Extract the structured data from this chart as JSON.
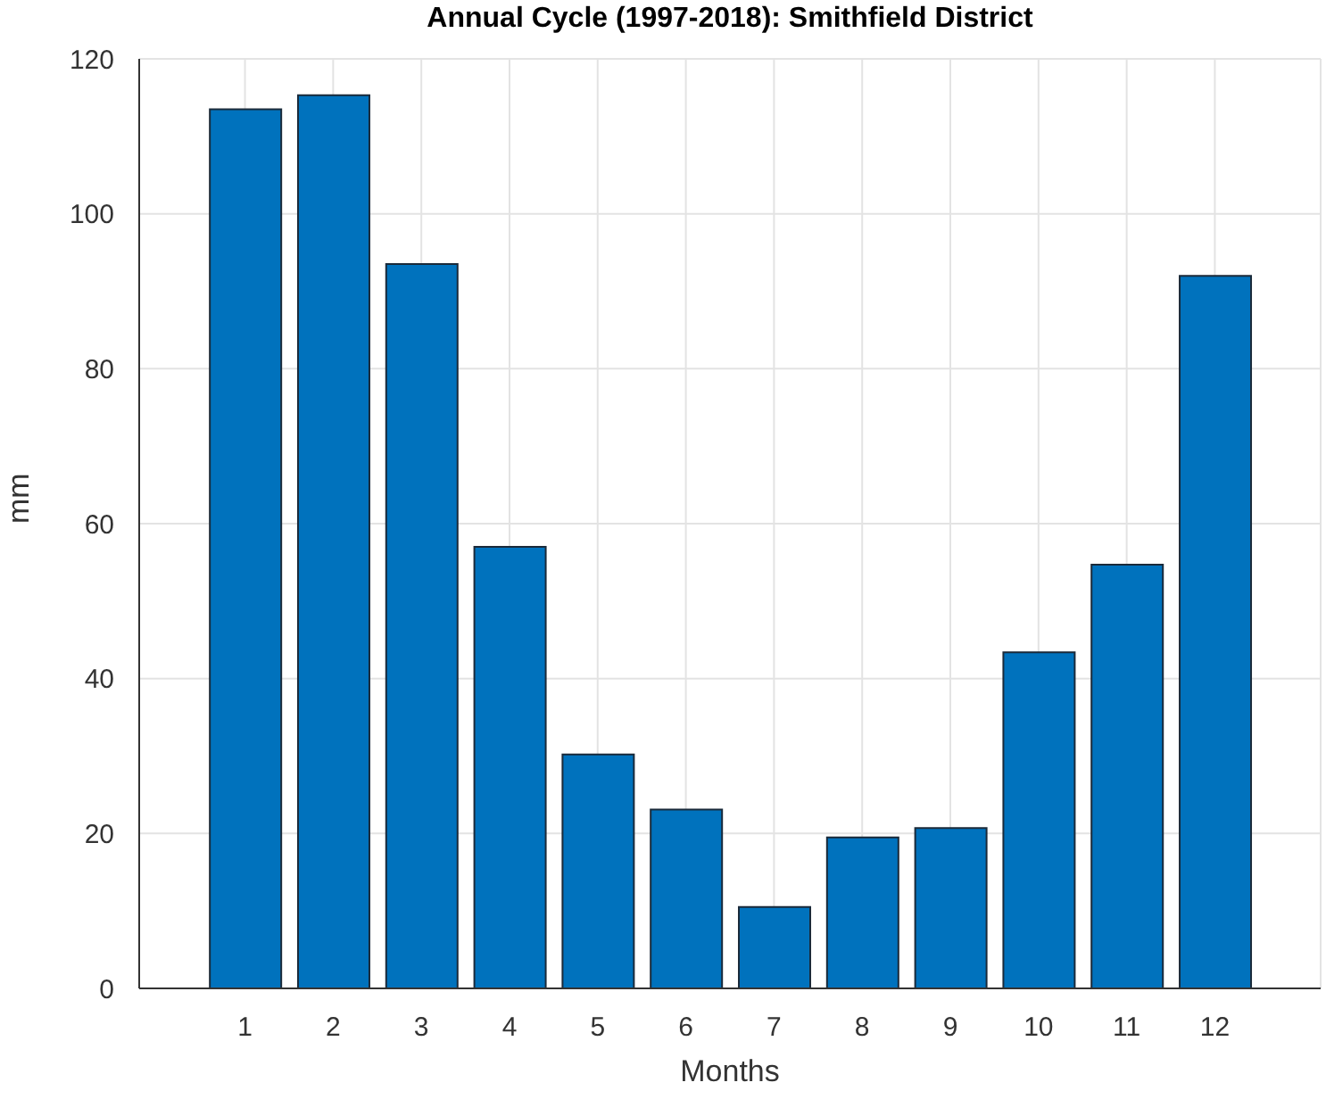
{
  "chart_data": {
    "type": "bar",
    "title": "Annual Cycle (1997-2018): Smithfield District",
    "xlabel": "Months",
    "ylabel": "mm",
    "x": [
      1,
      2,
      3,
      4,
      5,
      6,
      7,
      8,
      9,
      10,
      11,
      12
    ],
    "values": [
      113.5,
      115.3,
      93.5,
      57,
      30.2,
      23.1,
      10.5,
      19.5,
      20.7,
      43.4,
      54.7,
      92
    ],
    "color": "#0072bd",
    "xlim": [
      -0.2,
      13.2
    ],
    "xticks": [
      1,
      2,
      3,
      4,
      5,
      6,
      7,
      8,
      9,
      10,
      11,
      12
    ],
    "ylim": [
      0,
      120
    ],
    "yticks": [
      0,
      20,
      40,
      60,
      80,
      100,
      120
    ],
    "grid": true
  }
}
